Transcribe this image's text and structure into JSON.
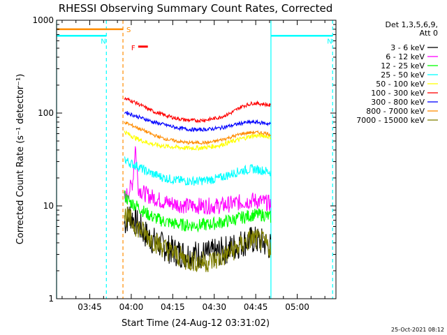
{
  "chart_data": {
    "type": "line",
    "title": "RHESSI Observing Summary Count Rates, Corrected",
    "xlabel": "Start Time (24-Aug-12 03:31:02)",
    "ylabel": "Corrected Count Rate (s⁻¹ detector⁻¹)",
    "x_unit": "minutes of day (UT)",
    "xlim": [
      213.0,
      314.0
    ],
    "ylim": [
      1,
      1000
    ],
    "y_scale": "log",
    "x_ticks": [
      {
        "value": 225,
        "label": "03:45"
      },
      {
        "value": 240,
        "label": "04:00"
      },
      {
        "value": 255,
        "label": "04:15"
      },
      {
        "value": 270,
        "label": "04:30"
      },
      {
        "value": 285,
        "label": "04:45"
      },
      {
        "value": 300,
        "label": "05:00"
      }
    ],
    "y_ticks": [
      {
        "value": 1,
        "label": "1"
      },
      {
        "value": 10,
        "label": "10"
      },
      {
        "value": 100,
        "label": "100"
      },
      {
        "value": 1000,
        "label": "1000"
      }
    ],
    "legend_header": [
      "Det 1,3,5,6,9,",
      "Att 0"
    ],
    "legend_position": "right",
    "series": [
      {
        "name": "3 - 6 keV",
        "color": "#000000",
        "x": [
          237.5,
          239.5,
          242,
          245,
          248,
          252,
          256,
          260,
          264,
          268,
          272,
          276,
          280,
          284,
          288,
          290.5
        ],
        "y": [
          6.5,
          8,
          6.5,
          5,
          4.2,
          3.6,
          3.2,
          3.0,
          3.0,
          3.0,
          3.2,
          3.5,
          4.0,
          4.3,
          4.0,
          3.6
        ]
      },
      {
        "name": "6 - 12 keV",
        "color": "#ff00ff",
        "x": [
          237.5,
          239,
          240.5,
          241.5,
          242.5,
          244,
          246,
          249,
          252,
          256,
          260,
          264,
          268,
          272,
          276,
          280,
          284,
          288,
          290.5
        ],
        "y": [
          12,
          14,
          18,
          45,
          16,
          14,
          13,
          12,
          11,
          10.5,
          10,
          10,
          10,
          10,
          10.5,
          11,
          11.5,
          11,
          10.5
        ]
      },
      {
        "name": "12 - 25 keV",
        "color": "#00ff00",
        "x": [
          237.5,
          239.5,
          242,
          245,
          248,
          252,
          256,
          260,
          264,
          268,
          272,
          276,
          280,
          284,
          288,
          290.5
        ],
        "y": [
          13,
          11,
          10,
          8.5,
          7.5,
          6.8,
          6.4,
          6.2,
          6.2,
          6.3,
          6.6,
          7.0,
          7.5,
          8.0,
          8.0,
          7.5
        ]
      },
      {
        "name": "25 - 50 keV",
        "color": "#00ffff",
        "x": [
          237.5,
          239.5,
          242,
          245,
          248,
          252,
          256,
          260,
          264,
          268,
          272,
          276,
          280,
          284,
          288,
          290.5
        ],
        "y": [
          32,
          29,
          27,
          24,
          22,
          20,
          19,
          18.5,
          18.5,
          19,
          20,
          22,
          24,
          25,
          24,
          23
        ]
      },
      {
        "name": "50 - 100 keV",
        "color": "#ffff00",
        "x": [
          237.5,
          239.5,
          242,
          245,
          248,
          252,
          256,
          260,
          264,
          268,
          272,
          276,
          280,
          284,
          288,
          290.5
        ],
        "y": [
          63,
          58,
          53,
          49,
          46,
          44,
          43,
          42,
          42,
          43,
          45,
          49,
          53,
          57,
          57,
          55
        ]
      },
      {
        "name": "100 - 300 keV",
        "color": "#ff0000",
        "x": [
          237.5,
          239.5,
          242,
          245,
          248,
          252,
          256,
          260,
          264,
          268,
          272,
          276,
          280,
          284,
          288,
          290.5
        ],
        "y": [
          143,
          138,
          128,
          115,
          104,
          95,
          88,
          84,
          83,
          85,
          90,
          100,
          118,
          128,
          125,
          120
        ]
      },
      {
        "name": "300 - 800 keV",
        "color": "#0000ff",
        "x": [
          237.5,
          239.5,
          242,
          245,
          248,
          252,
          256,
          260,
          264,
          268,
          272,
          276,
          280,
          284,
          288,
          290.5
        ],
        "y": [
          103,
          98,
          92,
          86,
          80,
          75,
          70,
          67,
          66,
          67,
          69,
          73,
          78,
          80,
          78,
          76
        ]
      },
      {
        "name": "800 - 7000 keV",
        "color": "#ff8c00",
        "x": [
          237.5,
          239.5,
          242,
          245,
          248,
          252,
          256,
          260,
          264,
          268,
          272,
          276,
          280,
          284,
          288,
          290.5
        ],
        "y": [
          80,
          75,
          70,
          64,
          58,
          53,
          50,
          48,
          48,
          48,
          51,
          55,
          60,
          62,
          61,
          59
        ]
      },
      {
        "name": "7000 - 15000 keV",
        "color": "#808000",
        "x": [
          237.5,
          239.5,
          242,
          245,
          248,
          252,
          256,
          260,
          264,
          268,
          272,
          276,
          280,
          284,
          288,
          290.5
        ],
        "y": [
          8,
          7,
          6,
          5,
          4.2,
          3.5,
          3.0,
          2.6,
          2.5,
          2.5,
          2.7,
          3.2,
          3.8,
          4.5,
          4.0,
          3.5
        ]
      }
    ],
    "flags": [
      {
        "label": "S",
        "color": "#ff8c00",
        "x_start": 213.0,
        "x_end": 237.0,
        "y": 800
      },
      {
        "label": "N",
        "color": "#00ffff",
        "x_start": 213.0,
        "x_end": 231.0,
        "y": 680
      },
      {
        "label": "N",
        "color": "#00ffff",
        "x_start": 290.5,
        "x_end": 312.8,
        "y": 680
      },
      {
        "label": "F",
        "color": "#ff0000",
        "x_start": 242.5,
        "x_end": 246.0,
        "y": 520
      }
    ],
    "vertical_markers": [
      {
        "x": 213.0,
        "color": "#00ffff",
        "style": "solid"
      },
      {
        "x": 231.0,
        "color": "#00ffff",
        "style": "dashed"
      },
      {
        "x": 237.0,
        "color": "#ff8c00",
        "style": "dashed"
      },
      {
        "x": 290.5,
        "color": "#00ffff",
        "style": "solid"
      },
      {
        "x": 312.8,
        "color": "#00ffff",
        "style": "dashed"
      }
    ]
  },
  "footer": {
    "timestamp": "25-Oct-2021 08:12"
  }
}
